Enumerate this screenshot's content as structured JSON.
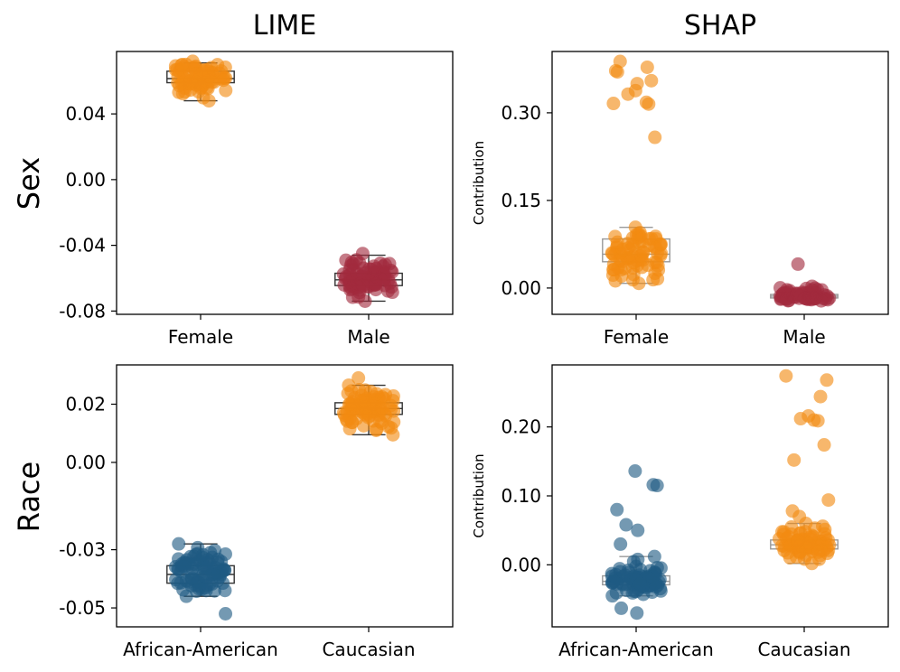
{
  "figure": {
    "col_titles": [
      "LIME",
      "SHAP"
    ],
    "row_labels": [
      "Sex",
      "Race"
    ]
  },
  "colors": {
    "orange": "#F28A12",
    "crimson": "#A22A3E",
    "blue": "#1F5A82",
    "box_dark": "#333333",
    "box_light": "#999999"
  },
  "chart_data": [
    {
      "id": "lime-sex",
      "type": "box-strip",
      "title": "LIME",
      "ylabel": "",
      "row_label": "Sex",
      "categories": [
        "Female",
        "Male"
      ],
      "ylim": [
        -0.082,
        0.078
      ],
      "yticks": [
        0.04,
        0.0,
        -0.04,
        -0.08
      ],
      "ytick_labels": [
        "0.04",
        "0.00",
        "-0.04",
        "-0.08"
      ],
      "box_style": "dark",
      "groups": [
        {
          "category": "Female",
          "color": "orange",
          "q1": 0.059,
          "median": 0.0615,
          "q3": 0.066,
          "whisker_low": 0.048,
          "whisker_high": 0.071,
          "min": 0.048,
          "max": 0.072,
          "n": 80,
          "outliers": []
        },
        {
          "category": "Male",
          "color": "crimson",
          "q1": -0.0645,
          "median": -0.061,
          "q3": -0.057,
          "whisker_low": -0.074,
          "whisker_high": -0.046,
          "min": -0.074,
          "max": -0.045,
          "n": 80,
          "outliers": []
        }
      ]
    },
    {
      "id": "shap-sex",
      "type": "box-strip",
      "title": "SHAP",
      "ylabel": "Contribution",
      "categories": [
        "Female",
        "Male"
      ],
      "ylim": [
        -0.045,
        0.405
      ],
      "yticks": [
        0.0,
        0.15,
        0.3
      ],
      "ytick_labels": [
        "0.00",
        "0.15",
        "0.30"
      ],
      "box_style": "light",
      "groups": [
        {
          "category": "Female",
          "color": "orange",
          "q1": 0.045,
          "median": 0.058,
          "q3": 0.084,
          "whisker_low": 0.008,
          "whisker_high": 0.104,
          "min": 0.008,
          "max": 0.104,
          "n": 75,
          "outliers": [
            0.388,
            0.378,
            0.372,
            0.37,
            0.355,
            0.35,
            0.338,
            0.332,
            0.318,
            0.316,
            0.315,
            0.258
          ]
        },
        {
          "category": "Male",
          "color": "crimson",
          "q1": -0.017,
          "median": -0.014,
          "q3": -0.011,
          "whisker_low": -0.02,
          "whisker_high": -0.006,
          "min": -0.022,
          "max": 0.003,
          "n": 60,
          "outliers": [
            0.041
          ]
        }
      ]
    },
    {
      "id": "lime-race",
      "type": "box-strip",
      "ylabel": "",
      "row_label": "Race",
      "categories": [
        "African-American",
        "Caucasian"
      ],
      "ylim": [
        -0.0565,
        0.0335
      ],
      "yticks": [
        0.02,
        0.0,
        -0.03,
        -0.05
      ],
      "ytick_labels": [
        "0.02",
        "0.00",
        "-0.03",
        "-0.05"
      ],
      "box_style": "dark",
      "groups": [
        {
          "category": "African-American",
          "color": "blue",
          "q1": -0.0415,
          "median": -0.0385,
          "q3": -0.0355,
          "whisker_low": -0.046,
          "whisker_high": -0.028,
          "min": -0.046,
          "max": -0.028,
          "n": 80,
          "outliers": [
            -0.052,
            -0.044
          ]
        },
        {
          "category": "Caucasian",
          "color": "orange",
          "q1": 0.0165,
          "median": 0.0185,
          "q3": 0.0205,
          "whisker_low": 0.0095,
          "whisker_high": 0.0265,
          "min": 0.0095,
          "max": 0.0265,
          "n": 80,
          "outliers": [
            0.029
          ]
        }
      ]
    },
    {
      "id": "shap-race",
      "type": "box-strip",
      "ylabel": "Contribution",
      "categories": [
        "African-American",
        "Caucasian"
      ],
      "ylim": [
        -0.09,
        0.29
      ],
      "yticks": [
        0.0,
        0.1,
        0.2
      ],
      "ytick_labels": [
        "0.00",
        "0.10",
        "0.20"
      ],
      "box_style": "light",
      "groups": [
        {
          "category": "African-American",
          "color": "blue",
          "q1": -0.029,
          "median": -0.024,
          "q3": -0.016,
          "whisker_low": -0.045,
          "whisker_high": 0.012,
          "min": -0.045,
          "max": 0.012,
          "n": 75,
          "outliers": [
            0.136,
            0.116,
            0.115,
            0.08,
            0.058,
            0.05,
            0.03,
            -0.063,
            -0.07
          ]
        },
        {
          "category": "Caucasian",
          "color": "orange",
          "q1": 0.023,
          "median": 0.029,
          "q3": 0.036,
          "whisker_low": 0.002,
          "whisker_high": 0.06,
          "min": 0.002,
          "max": 0.06,
          "n": 70,
          "outliers": [
            0.274,
            0.268,
            0.244,
            0.216,
            0.212,
            0.21,
            0.209,
            0.174,
            0.152,
            0.094,
            0.078,
            0.07
          ]
        }
      ]
    }
  ]
}
